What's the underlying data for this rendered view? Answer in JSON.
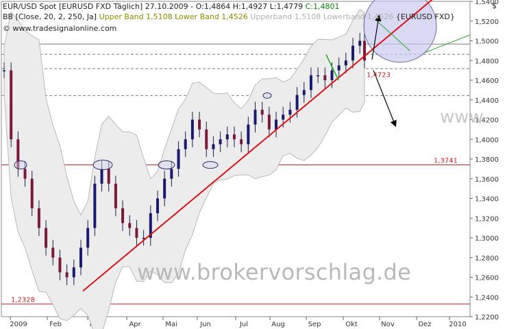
{
  "header": {
    "line1_prefix": "EUR/USD Spot [EURUSD FXD  Täglich] 27.10.2009 - O:1,4864 H:1,4927 L:1,4779",
    "line1_close": "C:1,4801",
    "line2_prefix": "BB [Close, 20, 2, 250, Ja]",
    "line2_upper": "Upper Band 1,5108 Lower Band 1,4526",
    "line2_faint": "Upperband 1,5108 Lowerband 1,4526",
    "line2_suffix": "{EURUSD FXD}",
    "line3": "www.tradesignalonline.com",
    "currency": "$"
  },
  "watermark": "www.brokervorschlag.de",
  "watermark_partial": "www",
  "chart_data": {
    "type": "candlestick",
    "title": "EUR/USD Spot",
    "ylim": [
      1.22,
      1.54
    ],
    "y_ticks": [
      "1,2200",
      "1,2400",
      "1,2600",
      "1,2800",
      "1,3000",
      "1,3200",
      "1,3400",
      "1,3600",
      "1,3800",
      "1,4000",
      "1,4200",
      "1,4400",
      "1,4600",
      "1,4800",
      "1,5000",
      "1,5200",
      "1,5400"
    ],
    "x_ticks": [
      "2009",
      "Feb",
      "Mär",
      "Apr",
      "Mai",
      "Jun",
      "Jul",
      "Aug",
      "Sep",
      "Okt",
      "Nov",
      "Dez",
      "2010"
    ],
    "levels": [
      {
        "label": "1,4967",
        "value": 1.4967,
        "style": "solid",
        "color": "#7a7a7a"
      },
      {
        "label": "1,4863",
        "value": 1.4863,
        "style": "dashed",
        "color": "#7a7a7a"
      },
      {
        "label": "1,4717",
        "value": 1.4717,
        "style": "dashed",
        "color": "#7a7a7a"
      },
      {
        "label": "1,4444",
        "value": 1.4444,
        "style": "dashed",
        "color": "#7a7a7a"
      },
      {
        "label": "1,3741",
        "value": 1.3741,
        "style": "solid",
        "color": "#cc2222"
      },
      {
        "label": "1,2328",
        "value": 1.2328,
        "style": "solid",
        "color": "#cc2222"
      }
    ],
    "annotation_price": "1,4723",
    "trendline": {
      "from": [
        "Mär",
        1.246
      ],
      "to": [
        "2010",
        1.575
      ]
    },
    "close_series": [
      [
        0,
        1.47
      ],
      [
        3,
        1.4
      ],
      [
        6,
        1.37
      ],
      [
        9,
        1.36
      ],
      [
        12,
        1.33
      ],
      [
        15,
        1.31
      ],
      [
        18,
        1.29
      ],
      [
        21,
        1.28
      ],
      [
        24,
        1.265
      ],
      [
        27,
        1.26
      ],
      [
        30,
        1.27
      ],
      [
        33,
        1.29
      ],
      [
        36,
        1.31
      ],
      [
        39,
        1.355
      ],
      [
        42,
        1.37
      ],
      [
        45,
        1.355
      ],
      [
        48,
        1.33
      ],
      [
        51,
        1.315
      ],
      [
        54,
        1.31
      ],
      [
        57,
        1.3
      ],
      [
        60,
        1.3
      ],
      [
        63,
        1.325
      ],
      [
        66,
        1.34
      ],
      [
        69,
        1.36
      ],
      [
        72,
        1.37
      ],
      [
        75,
        1.39
      ],
      [
        78,
        1.4
      ],
      [
        81,
        1.42
      ],
      [
        84,
        1.41
      ],
      [
        87,
        1.39
      ],
      [
        90,
        1.395
      ],
      [
        93,
        1.4
      ],
      [
        96,
        1.405
      ],
      [
        99,
        1.4
      ],
      [
        102,
        1.395
      ],
      [
        105,
        1.415
      ],
      [
        108,
        1.43
      ],
      [
        111,
        1.425
      ],
      [
        114,
        1.41
      ],
      [
        117,
        1.42
      ],
      [
        120,
        1.425
      ],
      [
        123,
        1.43
      ],
      [
        126,
        1.445
      ],
      [
        129,
        1.45
      ],
      [
        132,
        1.465
      ],
      [
        135,
        1.465
      ],
      [
        138,
        1.46
      ],
      [
        141,
        1.47
      ],
      [
        144,
        1.475
      ],
      [
        147,
        1.48
      ],
      [
        150,
        1.495
      ],
      [
        153,
        1.5
      ],
      [
        155,
        1.48
      ]
    ]
  }
}
